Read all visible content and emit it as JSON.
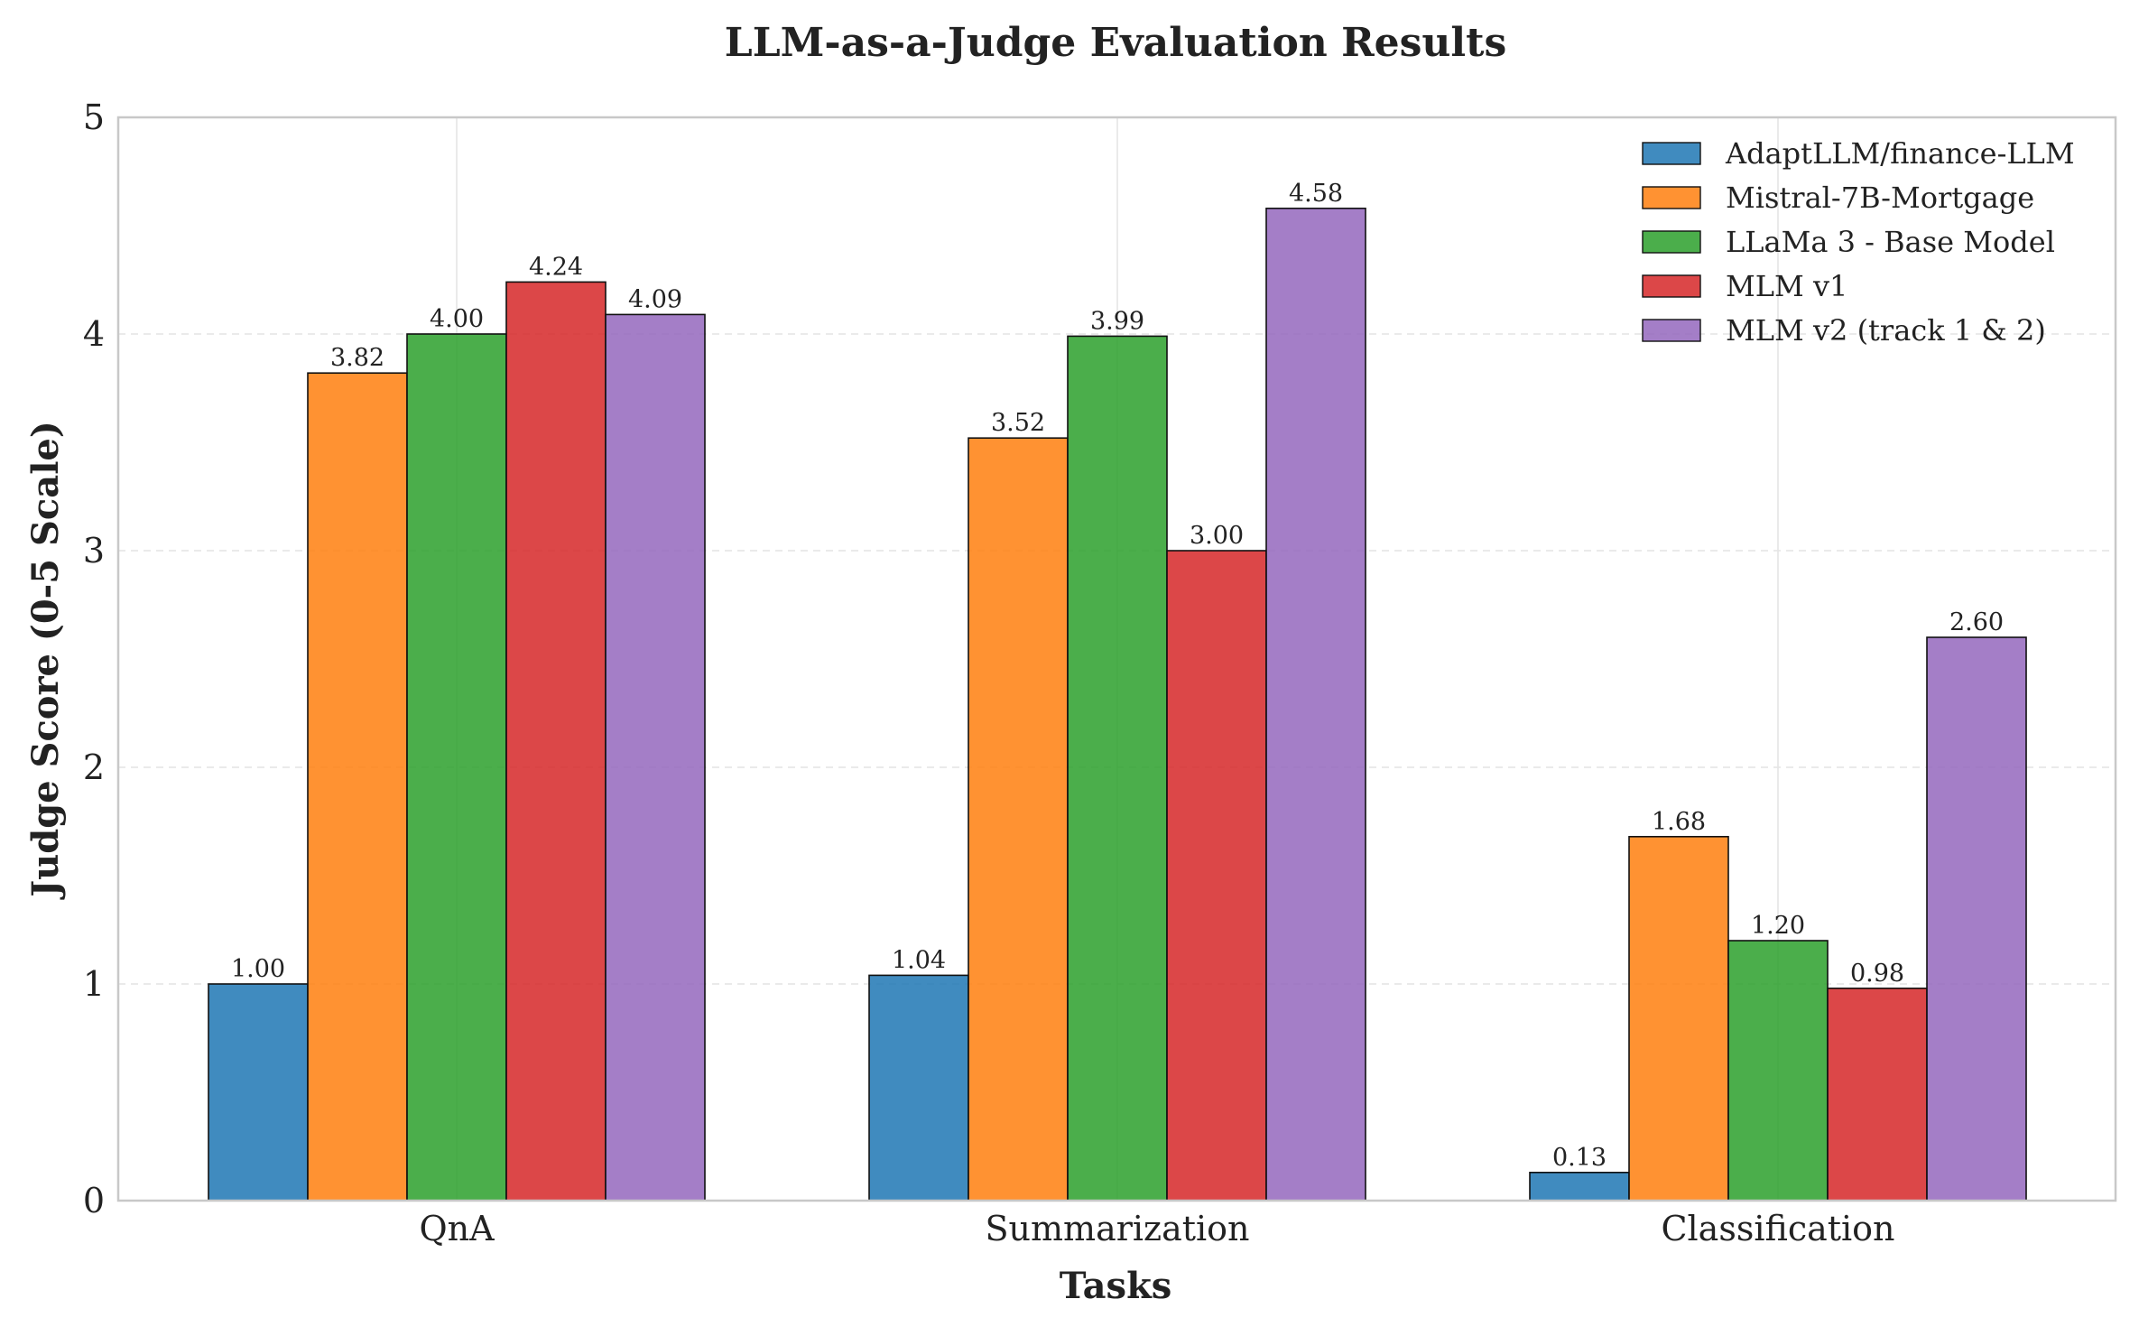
{
  "chart_data": {
    "type": "bar",
    "title": "LLM-as-a-Judge Evaluation Results",
    "xlabel": "Tasks",
    "ylabel": "Judge Score (0-5 Scale)",
    "ylim": [
      0,
      5
    ],
    "yticks": [
      "0",
      "1",
      "2",
      "3",
      "4",
      "5"
    ],
    "categories": [
      "QnA",
      "Summarization",
      "Classification"
    ],
    "legend_position": "top-right",
    "series": [
      {
        "name": "AdaptLLM/finance-LLM",
        "color": "#1f77b4",
        "values": [
          1.0,
          1.04,
          0.13
        ],
        "labels": [
          "1.00",
          "1.04",
          "0.13"
        ]
      },
      {
        "name": "Mistral-7B-Mortgage",
        "color": "#ff7f0e",
        "values": [
          3.82,
          3.52,
          1.68
        ],
        "labels": [
          "3.82",
          "3.52",
          "1.68"
        ]
      },
      {
        "name": "LLaMa 3 - Base Model",
        "color": "#2ca02c",
        "values": [
          4.0,
          3.99,
          1.2
        ],
        "labels": [
          "4.00",
          "3.99",
          "1.20"
        ]
      },
      {
        "name": "MLM v1",
        "color": "#d62728",
        "values": [
          4.24,
          3.0,
          0.98
        ],
        "labels": [
          "4.24",
          "3.00",
          "0.98"
        ]
      },
      {
        "name": "MLM v2 (track 1 & 2)",
        "color": "#9467bd",
        "values": [
          4.09,
          4.58,
          2.6
        ],
        "labels": [
          "4.09",
          "4.58",
          "2.60"
        ]
      }
    ]
  }
}
